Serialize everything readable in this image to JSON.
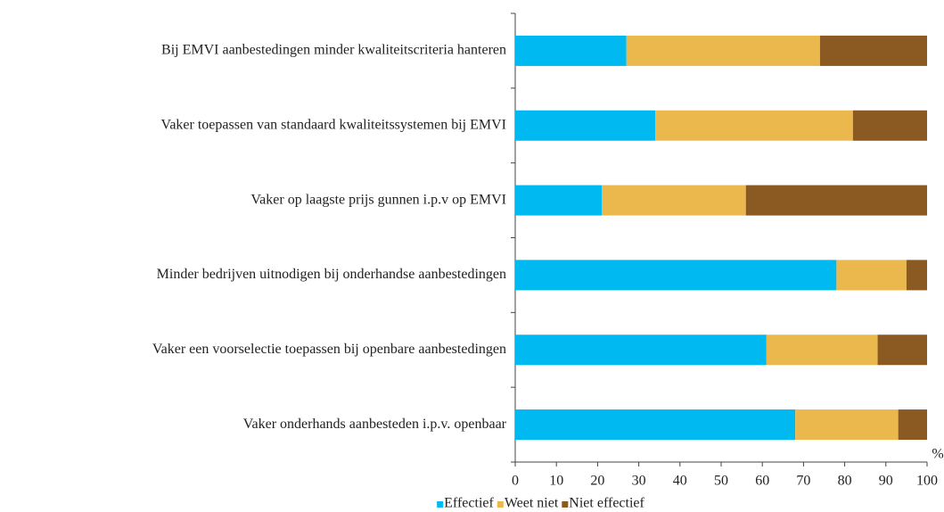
{
  "chart_data": {
    "type": "stacked_barh",
    "categories": [
      "Bij EMVI aanbestedingen minder kwaliteitscriteria hanteren",
      "Vaker toepassen van standaard kwaliteitssystemen bij EMVI",
      "Vaker op laagste prijs gunnen i.p.v op EMVI",
      "Minder bedrijven uitnodigen bij onderhandse aanbestedingen",
      "Vaker een voorselectie toepassen bij openbare aanbestedingen",
      "Vaker onderhands aanbesteden i.p.v. openbaar"
    ],
    "series": [
      {
        "name": "Effectief",
        "color": "#00b9f0",
        "values": [
          27,
          34,
          21,
          78,
          61,
          68
        ]
      },
      {
        "name": "Weet niet",
        "color": "#ebb84e",
        "values": [
          47,
          48,
          35,
          17,
          27,
          25
        ]
      },
      {
        "name": "Niet effectief",
        "color": "#8b5a22",
        "values": [
          26,
          18,
          44,
          5,
          12,
          7
        ]
      }
    ],
    "xlabel": "%",
    "xlim": [
      0,
      100
    ],
    "xticks": [
      0,
      10,
      20,
      30,
      40,
      50,
      60,
      70,
      80,
      90,
      100
    ],
    "legend": "bottom"
  }
}
